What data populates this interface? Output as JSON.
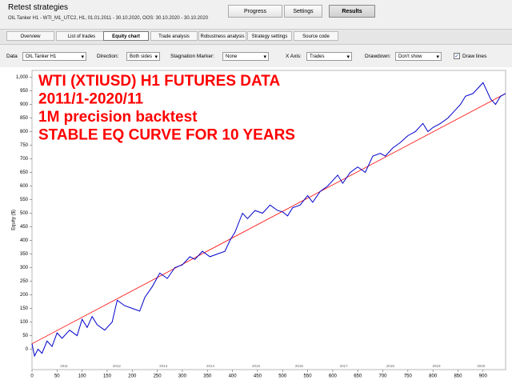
{
  "header": {
    "title": "Retest strategies",
    "subtitle": "OIL Tanker H1 - WTI_M1_UTC2, H1, 01.01.2011 - 30.10.2020, OOS: 30.10.2020 - 30.10.2020"
  },
  "buttons": [
    "Progress",
    "Settings",
    "Results"
  ],
  "active_button": 2,
  "tabs": [
    "Overview",
    "List of trades",
    "Equity chart",
    "Trade analysis",
    "Robustness analysis",
    "Strategy settings",
    "Source code"
  ],
  "active_tab": 2,
  "controls": [
    {
      "label": "Data",
      "value": "OIL Tanker H1"
    },
    {
      "label": "Direction:",
      "value": "Both sides"
    },
    {
      "label": "Stagnation Marker:",
      "value": "None"
    },
    {
      "label": "X Axis:",
      "value": "Trades"
    },
    {
      "label": "Drawdown:",
      "value": "Don't show"
    }
  ],
  "checkbox": {
    "label": "Draw lines",
    "checked": true
  },
  "chart_data": {
    "type": "line",
    "y_label": "Equity ($)",
    "annotations": [
      "WTI (XTIUSD) H1 FUTURES DATA",
      "2011/1-2020/11",
      "1M precision backtest",
      "STABLE EQ CURVE FOR 10 YEARS"
    ],
    "annotation_color": "#ff0000",
    "series": [
      {
        "color": "#0000cc",
        "x": [
          0,
          5,
          12,
          20,
          30,
          40,
          50,
          60,
          75,
          90,
          100,
          110,
          120,
          130,
          145,
          160,
          170,
          185,
          200,
          215,
          225,
          240,
          255,
          270,
          285,
          300,
          315,
          325,
          340,
          355,
          370,
          385,
          395,
          405,
          420,
          430,
          445,
          460,
          475,
          490,
          500,
          510,
          520,
          535,
          550,
          560,
          575,
          590,
          600,
          610,
          620,
          635,
          650,
          665,
          680,
          695,
          705,
          720,
          735,
          750,
          765,
          780,
          790,
          800,
          815,
          830,
          845,
          855,
          865,
          880,
          890,
          900,
          905,
          915,
          925,
          935,
          945
        ],
        "values": [
          20,
          -25,
          0,
          -15,
          30,
          10,
          60,
          40,
          70,
          50,
          110,
          80,
          120,
          90,
          70,
          100,
          180,
          160,
          150,
          140,
          190,
          230,
          280,
          260,
          300,
          310,
          340,
          330,
          360,
          340,
          350,
          360,
          400,
          430,
          500,
          480,
          510,
          500,
          530,
          510,
          505,
          490,
          520,
          530,
          565,
          540,
          580,
          600,
          620,
          640,
          610,
          650,
          670,
          650,
          710,
          720,
          710,
          740,
          760,
          785,
          800,
          830,
          800,
          815,
          830,
          850,
          880,
          900,
          930,
          940,
          960,
          980,
          960,
          920,
          900,
          930,
          940
        ]
      },
      {
        "color": "#ff0000",
        "x": [
          0,
          945
        ],
        "values": [
          20,
          940
        ]
      }
    ],
    "xlim": [
      0,
      945
    ],
    "ylim": [
      -75,
      1025
    ],
    "xticks": [
      0,
      50,
      100,
      150,
      200,
      250,
      300,
      350,
      400,
      450,
      500,
      550,
      600,
      650,
      700,
      750,
      800,
      850,
      900
    ],
    "yticks": [
      0,
      50,
      100,
      150,
      200,
      250,
      300,
      350,
      400,
      450,
      500,
      550,
      600,
      650,
      700,
      750,
      800,
      850,
      900,
      950,
      {
        "value": 1000,
        "label": "1,000"
      }
    ],
    "year_labels": [
      {
        "value": 64,
        "label": "2011"
      },
      {
        "value": 169,
        "label": "2012"
      },
      {
        "value": 262,
        "label": "2013"
      },
      {
        "value": 356,
        "label": "2014"
      },
      {
        "value": 447,
        "label": "2015"
      },
      {
        "value": 533,
        "label": "2016"
      },
      {
        "value": 622,
        "label": "2017"
      },
      {
        "value": 715,
        "label": "2018"
      },
      {
        "value": 807,
        "label": "2019"
      },
      {
        "value": 896,
        "label": "2020"
      }
    ],
    "grid": false
  }
}
